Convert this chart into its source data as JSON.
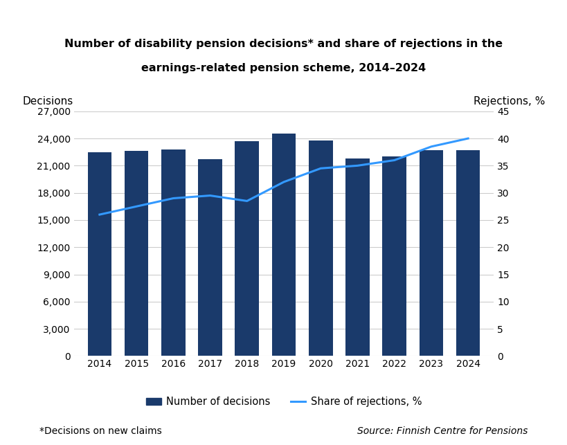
{
  "years": [
    2014,
    2015,
    2016,
    2017,
    2018,
    2019,
    2020,
    2021,
    2022,
    2023,
    2024
  ],
  "decisions": [
    22500,
    22600,
    22800,
    21700,
    23700,
    24500,
    23800,
    21800,
    22000,
    22700,
    22700
  ],
  "rejections_pct": [
    26,
    27.5,
    29,
    29.5,
    28.5,
    32,
    34.5,
    35,
    36,
    38.5,
    40
  ],
  "bar_color": "#1a3a6b",
  "line_color": "#3399ff",
  "title_line1": "Number of disability pension decisions* and share of rejections in the",
  "title_line2": "earnings-related pension scheme, 2014–2024",
  "ylabel_left": "Decisions",
  "ylabel_right": "Rejections, %",
  "ylim_left": [
    0,
    27000
  ],
  "ylim_right": [
    0,
    45
  ],
  "yticks_left": [
    0,
    3000,
    6000,
    9000,
    12000,
    15000,
    18000,
    21000,
    24000,
    27000
  ],
  "yticks_right": [
    0,
    5,
    10,
    15,
    20,
    25,
    30,
    35,
    40,
    45
  ],
  "legend_bar": "Number of decisions",
  "legend_line": "Share of rejections, %",
  "footnote": "*Decisions on new claims",
  "source": "Source: Finnish Centre for Pensions",
  "background_color": "#ffffff",
  "grid_color": "#cccccc"
}
